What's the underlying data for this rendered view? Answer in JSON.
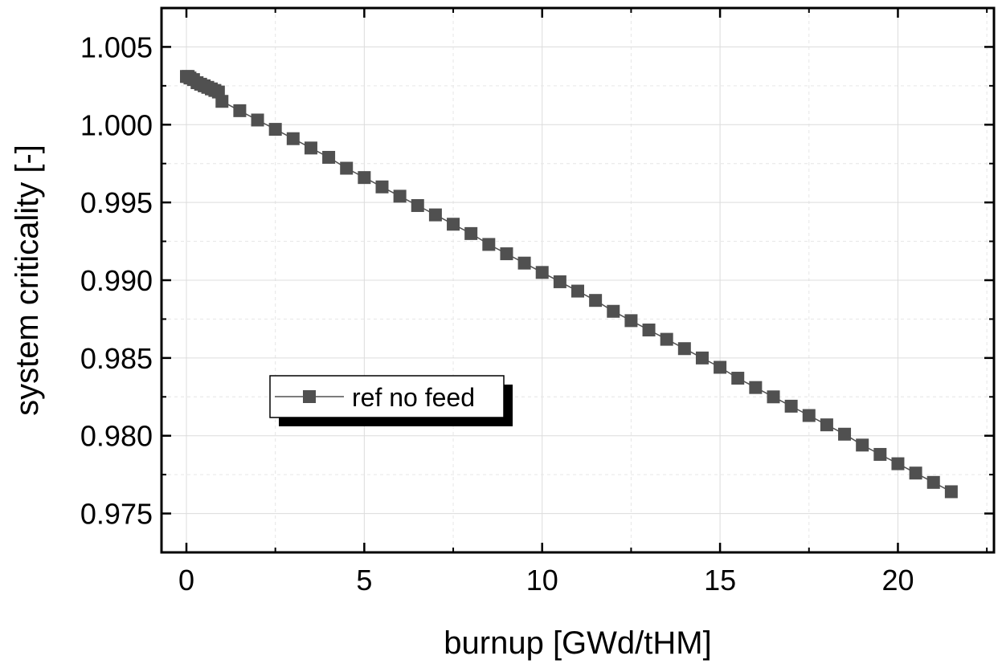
{
  "chart_data": {
    "type": "line",
    "title": "",
    "xlabel": "burnup [GWd/tHM]",
    "ylabel": "system criticality [-]",
    "xlim": [
      -0.7,
      22.7
    ],
    "ylim": [
      0.9725,
      1.0075
    ],
    "x_ticks": [
      0,
      5,
      10,
      15,
      20
    ],
    "x_tick_labels": [
      "0",
      "5",
      "10",
      "15",
      "20"
    ],
    "y_ticks": [
      0.975,
      0.98,
      0.985,
      0.99,
      0.995,
      1.0,
      1.005
    ],
    "y_tick_labels": [
      "0.975",
      "0.980",
      "0.985",
      "0.990",
      "0.995",
      "1.000",
      "1.005"
    ],
    "grid": true,
    "legend_position": "lower-left",
    "series_color": "#505050",
    "series": [
      {
        "name": "ref no feed",
        "marker": "square",
        "x": [
          0,
          0.05,
          0.1,
          0.2,
          0.3,
          0.4,
          0.5,
          0.6,
          0.7,
          0.8,
          0.9,
          1.0,
          1.5,
          2.0,
          2.5,
          3.0,
          3.5,
          4.0,
          4.5,
          5.0,
          5.5,
          6.0,
          6.5,
          7.0,
          7.5,
          8.0,
          8.5,
          9.0,
          9.5,
          10.0,
          10.5,
          11.0,
          11.5,
          12.0,
          12.5,
          13.0,
          13.5,
          14.0,
          14.5,
          15.0,
          15.5,
          16.0,
          16.5,
          17.0,
          17.5,
          18.0,
          18.5,
          19.0,
          19.5,
          20.0,
          20.5,
          21.0,
          21.5
        ],
        "y": [
          1.0031,
          1.0031,
          1.003,
          1.0029,
          1.0027,
          1.0026,
          1.0025,
          1.0024,
          1.0023,
          1.0022,
          1.0021,
          1.0015,
          1.0009,
          1.0003,
          0.9997,
          0.9991,
          0.9985,
          0.9979,
          0.9972,
          0.9966,
          0.996,
          0.9954,
          0.9948,
          0.9942,
          0.9936,
          0.993,
          0.9923,
          0.9917,
          0.9911,
          0.9905,
          0.9899,
          0.9893,
          0.9887,
          0.988,
          0.9874,
          0.9868,
          0.9862,
          0.9856,
          0.985,
          0.9844,
          0.9837,
          0.9831,
          0.9825,
          0.9819,
          0.9813,
          0.9807,
          0.9801,
          0.9794,
          0.9788,
          0.9782,
          0.9776,
          0.977,
          0.9764
        ]
      }
    ]
  }
}
